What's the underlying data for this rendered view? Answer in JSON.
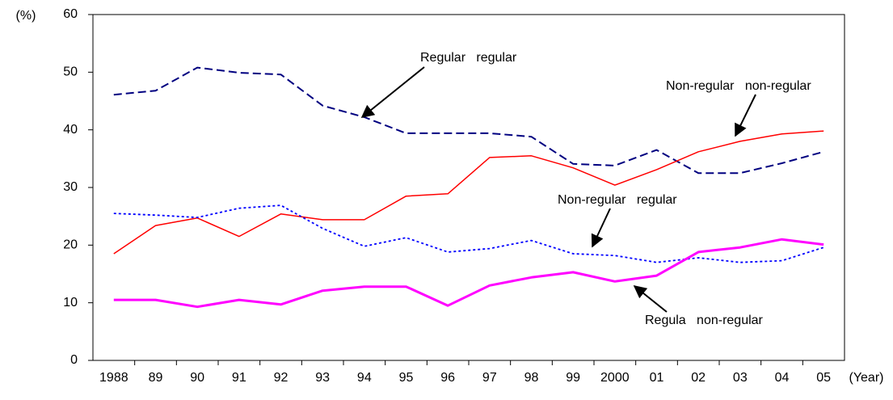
{
  "chart_data": {
    "type": "line",
    "y_label": "(%)",
    "x_label": "(Year)",
    "categories": [
      "1988",
      "89",
      "90",
      "91",
      "92",
      "93",
      "94",
      "95",
      "96",
      "97",
      "98",
      "99",
      "2000",
      "01",
      "02",
      "03",
      "04",
      "05"
    ],
    "series": [
      {
        "name": "Regular   regular",
        "color": "#000080",
        "style": "dashed",
        "values": [
          46.1,
          46.8,
          50.8,
          49.9,
          49.6,
          44.2,
          42.2,
          39.4,
          39.4,
          39.4,
          38.8,
          34.1,
          33.8,
          36.5,
          32.5,
          32.5,
          34.2,
          36.2
        ]
      },
      {
        "name": "Non-regular   non-regular",
        "color": "#ff0000",
        "style": "solid",
        "values": [
          18.5,
          23.4,
          24.7,
          21.5,
          25.4,
          24.4,
          24.4,
          28.5,
          28.9,
          35.2,
          35.5,
          33.4,
          30.4,
          33.1,
          36.2,
          38.0,
          39.3,
          39.8
        ]
      },
      {
        "name": "Non-regular   regular",
        "color": "#0000ff",
        "style": "dotted",
        "values": [
          25.5,
          25.2,
          24.8,
          26.4,
          26.9,
          22.9,
          19.8,
          21.3,
          18.8,
          19.4,
          20.8,
          18.5,
          18.2,
          17.0,
          17.8,
          17.0,
          17.3,
          19.6
        ]
      },
      {
        "name": "Regula   non-regular",
        "color": "#ff00ff",
        "style": "thick",
        "values": [
          10.5,
          10.5,
          9.3,
          10.5,
          9.7,
          12.1,
          12.8,
          12.8,
          9.5,
          13.0,
          14.4,
          15.3,
          13.7,
          14.7,
          18.8,
          19.6,
          21.0,
          20.1
        ]
      }
    ],
    "ylim": [
      0,
      60
    ],
    "yticks": [
      0,
      10,
      20,
      30,
      40,
      50,
      60
    ],
    "grid": false
  }
}
